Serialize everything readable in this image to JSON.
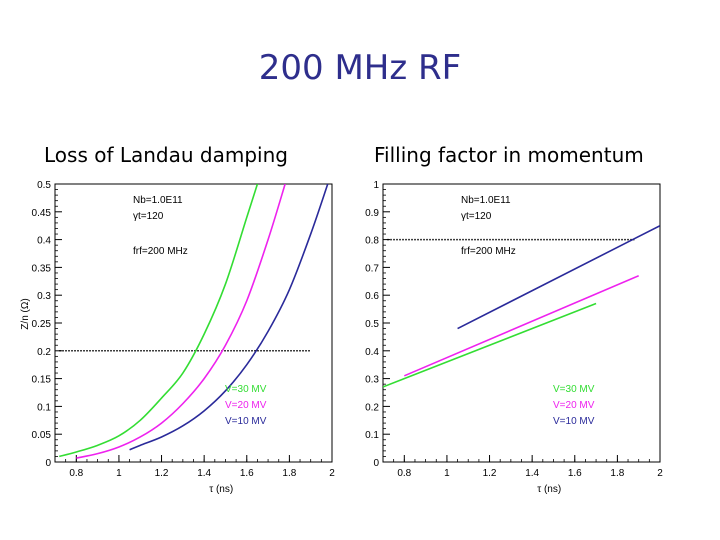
{
  "slide": {
    "title": "200 MHz RF"
  },
  "chart_data": [
    {
      "type": "line",
      "subtitle": "Loss of Landau damping",
      "xlabel": "τ (ns)",
      "ylabel": "Z/n (Ω)",
      "xlim": [
        0.7,
        2.0
      ],
      "ylim": [
        0,
        0.5
      ],
      "xticks": [
        0.8,
        1,
        1.2,
        1.4,
        1.6,
        1.8,
        2
      ],
      "xtick_labels": [
        "0.8",
        "1",
        "1.2",
        "1.4",
        "1.6",
        "1.8",
        "2"
      ],
      "yticks": [
        0,
        0.05,
        0.1,
        0.15,
        0.2,
        0.25,
        0.3,
        0.35,
        0.4,
        0.45,
        0.5
      ],
      "ytick_labels": [
        "0",
        "0.05",
        "0.1",
        "0.15",
        "0.2",
        "0.25",
        "0.3",
        "0.35",
        "0.4",
        "0.45",
        "0.5"
      ],
      "annotations": [
        "Nb=1.0E11",
        "γt=120",
        "frf=200 MHz"
      ],
      "series": [
        {
          "name": "V=30 MV",
          "color": "#33dd33",
          "x": [
            0.72,
            0.8,
            0.9,
            1.0,
            1.1,
            1.2,
            1.3,
            1.4,
            1.5,
            1.6,
            1.65
          ],
          "y": [
            0.01,
            0.018,
            0.03,
            0.047,
            0.075,
            0.115,
            0.16,
            0.23,
            0.32,
            0.44,
            0.5
          ]
        },
        {
          "name": "V=20 MV",
          "color": "#ee22ee",
          "x": [
            0.8,
            0.9,
            1.0,
            1.1,
            1.2,
            1.3,
            1.4,
            1.5,
            1.6,
            1.7,
            1.78
          ],
          "y": [
            0.007,
            0.015,
            0.027,
            0.045,
            0.07,
            0.105,
            0.15,
            0.21,
            0.29,
            0.4,
            0.5
          ]
        },
        {
          "name": "V=10 MV",
          "color": "#2a2a9a",
          "x": [
            1.05,
            1.1,
            1.2,
            1.3,
            1.4,
            1.5,
            1.6,
            1.7,
            1.8,
            1.9,
            1.98
          ],
          "y": [
            0.022,
            0.03,
            0.045,
            0.065,
            0.092,
            0.128,
            0.175,
            0.235,
            0.31,
            0.41,
            0.5
          ]
        }
      ],
      "reference_line": {
        "y": 0.2,
        "x": [
          0.72,
          1.9
        ]
      },
      "legend": "bottom-right"
    },
    {
      "type": "line",
      "subtitle": "Filling factor in momentum",
      "xlabel": "τ (ns)",
      "ylabel": "",
      "xlim": [
        0.7,
        2.0
      ],
      "ylim": [
        0,
        1
      ],
      "xticks": [
        0.8,
        1,
        1.2,
        1.4,
        1.6,
        1.8,
        2
      ],
      "xtick_labels": [
        "0.8",
        "1",
        "1.2",
        "1.4",
        "1.6",
        "1.8",
        "2"
      ],
      "yticks": [
        0,
        0.1,
        0.2,
        0.3,
        0.4,
        0.5,
        0.6,
        0.7,
        0.8,
        0.9,
        1
      ],
      "ytick_labels": [
        "0",
        "0.1",
        "0.2",
        "0.3",
        "0.4",
        "0.5",
        "0.6",
        "0.7",
        "0.8",
        "0.9",
        "1"
      ],
      "annotations": [
        "Nb=1.0E11",
        "γt=120",
        "frf=200 MHz"
      ],
      "series": [
        {
          "name": "V=30 MV",
          "color": "#33dd33",
          "x": [
            0.7,
            1.7
          ],
          "y": [
            0.27,
            0.57
          ]
        },
        {
          "name": "V=20 MV",
          "color": "#ee22ee",
          "x": [
            0.8,
            1.9
          ],
          "y": [
            0.31,
            0.67
          ]
        },
        {
          "name": "V=10 MV",
          "color": "#2a2a9a",
          "x": [
            1.05,
            2.0
          ],
          "y": [
            0.48,
            0.85
          ]
        }
      ],
      "reference_line": {
        "y": 0.8,
        "x": [
          0.72,
          1.88
        ]
      },
      "legend": "bottom-right"
    }
  ]
}
